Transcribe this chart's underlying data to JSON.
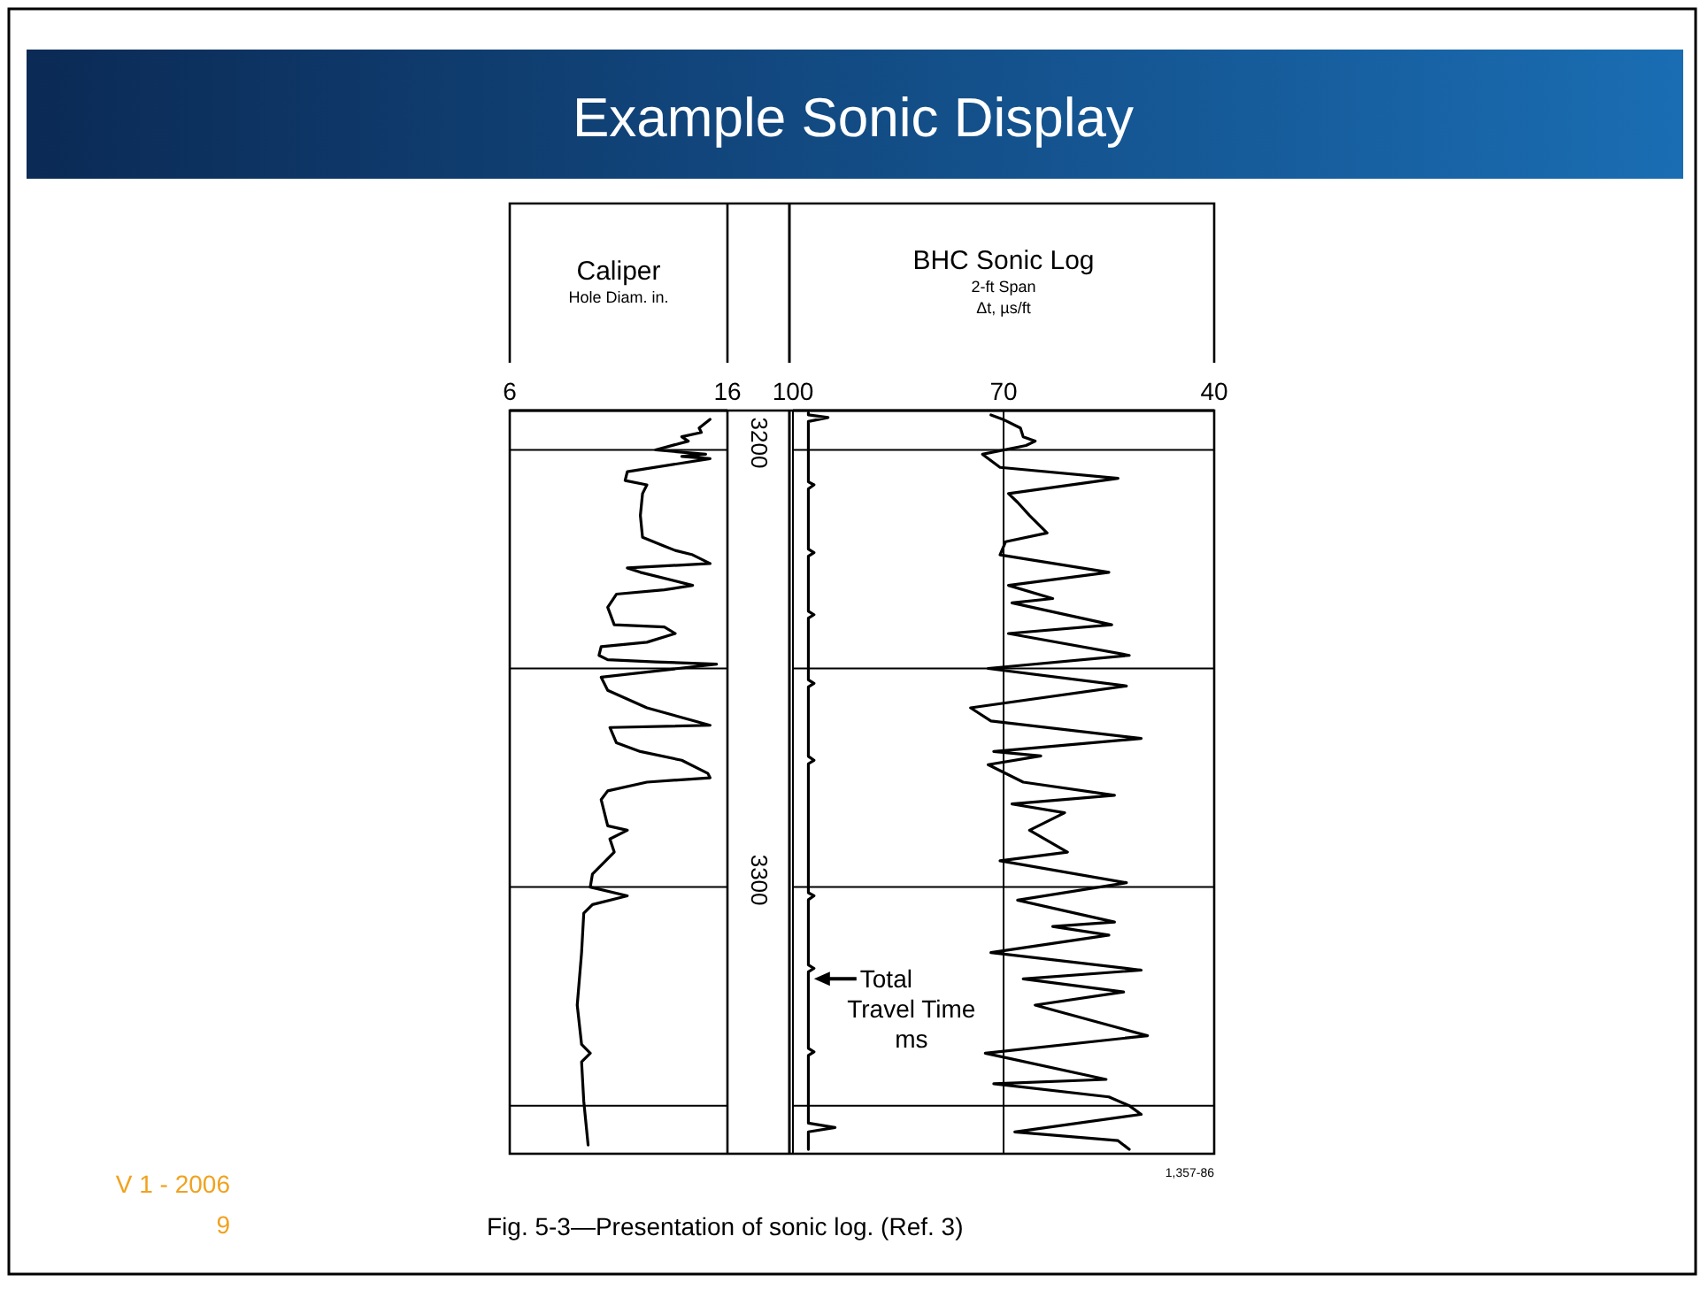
{
  "chart_data": [
    {
      "type": "line",
      "title": "Caliper",
      "xlabel": "Hole Diam. in.",
      "xlim": [
        6,
        16
      ],
      "xticks": [
        6,
        16
      ],
      "ylim": [
        3361,
        3191
      ],
      "yticks": [
        3200,
        {
          "value": 3250,
          "label": null
        },
        3300,
        {
          "value": 3350,
          "label": null
        }
      ],
      "grid": "y",
      "annotations": [
        "Example Sonic Display",
        "Fig. 5-3—Presentation of sonic log. (Ref. 3)",
        "1,357-86",
        "V 1 - 2006",
        "9"
      ],
      "series": [
        {
          "color": "#000000",
          "x": [
            15.2,
            14.7,
            14.8,
            13.9,
            14.2,
            12.7,
            15.0,
            13.9,
            15.2,
            11.4,
            11.3,
            12.3,
            12.1,
            12.0,
            12.1,
            13.1,
            13.6,
            14.4,
            15.2,
            11.4,
            12.0,
            14.4,
            13.1,
            10.9,
            10.5,
            10.8,
            13.1,
            13.6,
            12.3,
            10.2,
            10.1,
            10.5,
            12.7,
            15.5,
            10.2,
            10.5,
            12.3,
            15.2,
            10.6,
            10.9,
            12.0,
            13.9,
            15.1,
            15.2,
            12.3,
            10.5,
            10.2,
            10.5,
            11.4,
            10.6,
            10.8,
            9.8,
            9.7,
            11.4,
            9.8,
            9.4,
            9.3,
            9.1,
            9.3,
            9.7,
            9.3,
            9.4,
            9.6
          ],
          "values": [
            3193,
            3195,
            3196,
            3197,
            3198,
            3200,
            3201,
            3201.5,
            3202,
            3205,
            3207,
            3208,
            3210,
            3215,
            3220,
            3222,
            3223,
            3224,
            3226,
            3227,
            3228,
            3231,
            3232,
            3233,
            3236,
            3240,
            3240.5,
            3242,
            3244,
            3245,
            3247,
            3248,
            3248.5,
            3249,
            3252,
            3255,
            3259,
            3263,
            3263.5,
            3267,
            3269,
            3271,
            3274,
            3275,
            3276,
            3278,
            3280,
            3286,
            3287,
            3289,
            3292,
            3297,
            3300,
            3302,
            3304,
            3306,
            3315,
            3327,
            3336,
            3338,
            3340,
            3349,
            3359
          ]
        }
      ]
    },
    {
      "type": "line",
      "title": "BHC Sonic Log",
      "subtitle": "2-ft Span",
      "xlabel": "Δt, µs/ft",
      "xlim": [
        100,
        40
      ],
      "xticks": [
        100,
        70,
        40
      ],
      "ylim": [
        3361,
        3191
      ],
      "yticks": [
        3200,
        3250,
        3300,
        3350
      ],
      "grid": true,
      "tick_labels": "x",
      "annotations": [
        {
          "text": "Total Travel Time ms",
          "x": 97,
          "y": 3321
        }
      ],
      "series": [
        {
          "color": "#000000",
          "x": [
            71.8,
            70.1,
            67.6,
            67.2,
            65.5,
            66.8,
            73,
            70.5,
            53.7,
            69.3,
            68,
            66.3,
            63.8,
            69.7,
            70.5,
            55,
            69.3,
            63,
            68.8,
            54.6,
            69.3,
            52.1,
            72.2,
            52.5,
            74.7,
            71.8,
            50.4,
            71.4,
            64.7,
            72.2,
            67.2,
            54.2,
            68.8,
            61.3,
            66.3,
            60.9,
            70.5,
            52.5,
            68,
            54.2,
            63,
            55,
            71.8,
            50.4,
            67.2,
            52.9,
            65.5,
            49.5,
            72.6,
            55.4,
            71.4,
            55,
            52.1,
            50.4,
            68.4,
            53.7,
            52.1
          ],
          "values": [
            3192,
            3193,
            3195,
            3197,
            3198,
            3199,
            3201,
            3204,
            3206.5,
            3210,
            3212,
            3215,
            3219,
            3221,
            3224,
            3228,
            3231,
            3234,
            3235,
            3240,
            3242,
            3247,
            3250,
            3254,
            3259,
            3262,
            3266,
            3269,
            3270,
            3272,
            3276,
            3279,
            3281,
            3283,
            3287,
            3292,
            3294,
            3299,
            3303,
            3308,
            3309,
            3311,
            3315,
            3319,
            3321,
            3324,
            3327,
            3334,
            3338,
            3344,
            3345,
            3348,
            3350,
            3352,
            3356,
            3358,
            3360
          ]
        },
        {
          "color": "#000000",
          "x": [
            97.8,
            97.8,
            95,
            97.8,
            97.8,
            97,
            97.8,
            97.8,
            97,
            97.8,
            97.8,
            97,
            97.8,
            97.8,
            97,
            97.8,
            97.8,
            97,
            97.8,
            97.8,
            97,
            97.8,
            97.8,
            97,
            97.8,
            97.8,
            97,
            97.8,
            97.8,
            94,
            97.8,
            97.8
          ],
          "values": [
            3191.5,
            3192,
            3192.6,
            3193.5,
            3207.3,
            3208,
            3208.9,
            3222.7,
            3223.5,
            3224.3,
            3236.9,
            3237.7,
            3238.5,
            3252.6,
            3253.4,
            3254.2,
            3270.1,
            3271,
            3271.8,
            3301.3,
            3302,
            3302.9,
            3317.8,
            3318.6,
            3319.4,
            3336.9,
            3337.7,
            3338.5,
            3354,
            3355,
            3356,
            3360
          ]
        }
      ]
    }
  ]
}
